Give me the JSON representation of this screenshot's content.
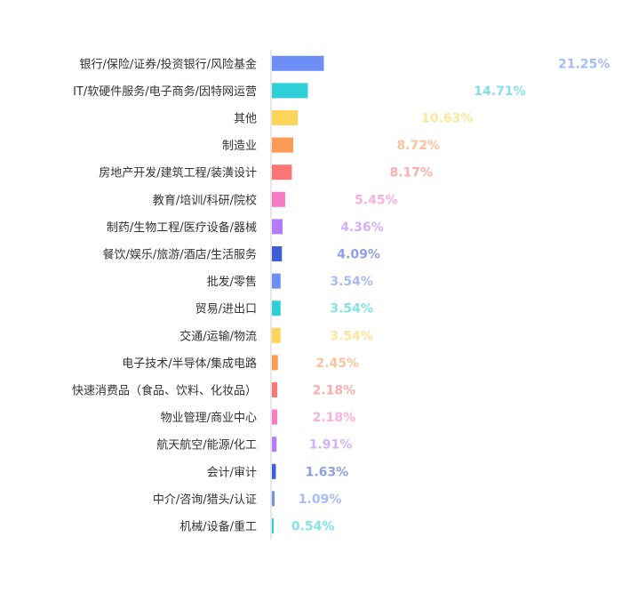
{
  "chart_data": {
    "type": "bar",
    "orientation": "horizontal",
    "categories": [
      "银行/保险/证券/投资银行/风险基金",
      "IT/软硬件服务/电子商务/因特网运营",
      "其他",
      "制造业",
      "房地产开发/建筑工程/装潢设计",
      "教育/培训/科研/院校",
      "制药/生物工程/医疗设备/器械",
      "餐饮/娱乐/旅游/酒店/生活服务",
      "批发/零售",
      "贸易/进出口",
      "交通/运输/物流",
      "电子技术/半导体/集成电路",
      "快速消费品（食品、饮料、化妆品）",
      "物业管理/商业中心",
      "航天航空/能源/化工",
      "会计/审计",
      "中介/咨询/猎头/认证",
      "机械/设备/重工"
    ],
    "values": [
      21.25,
      14.71,
      10.63,
      8.72,
      8.17,
      5.45,
      4.36,
      4.09,
      3.54,
      3.54,
      3.54,
      2.45,
      2.18,
      2.18,
      1.91,
      1.63,
      1.09,
      0.54
    ],
    "value_labels": [
      "21.25%",
      "14.71%",
      "10.63%",
      "8.72%",
      "8.17%",
      "5.45%",
      "4.36%",
      "4.09%",
      "3.54%",
      "3.54%",
      "3.54%",
      "2.45%",
      "2.18%",
      "2.18%",
      "1.91%",
      "1.63%",
      "1.09%",
      "0.54%"
    ],
    "unit": "%",
    "xlim": [
      0,
      100
    ],
    "grid": false,
    "legend": "none",
    "palette": [
      "#6d8ef5",
      "#2ecfd9",
      "#fdd55a",
      "#fd9a55",
      "#fc7676",
      "#f87cc4",
      "#b57cf8",
      "#3f5fd8"
    ]
  }
}
